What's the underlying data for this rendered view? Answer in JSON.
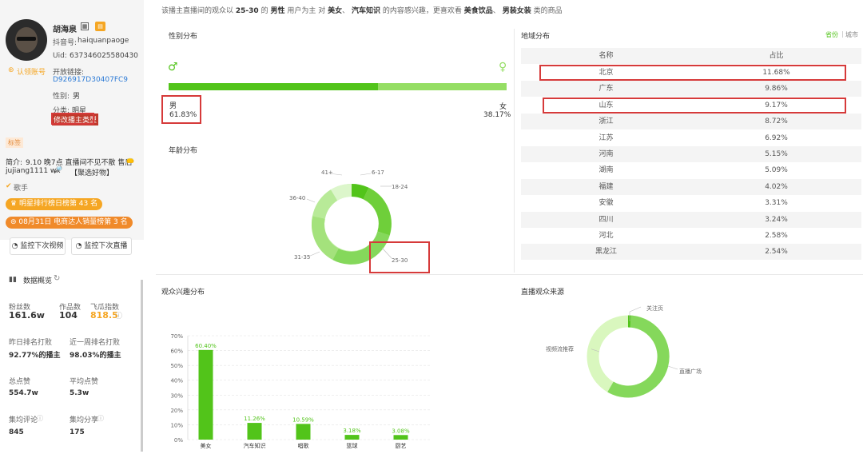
{
  "banner": {
    "p1": "该播主直播间的观众以",
    "age": "25-30",
    "p2": "的",
    "gender": "男性",
    "p3": "用户为主 对",
    "i1": "美女",
    "sep": "、",
    "i2": "汽车知识",
    "p4": "的内容感兴趣，更喜欢看",
    "g1": "美食饮品",
    "g2": "男装女装",
    "p5": "类的商品"
  },
  "profile": {
    "name": "胡海泉",
    "douyin_label": "抖音号:",
    "douyin_id": "haiquanpaoge",
    "uid_label": "Uid:",
    "uid": "637346025580430",
    "link_label": "开放链接:",
    "link": "D926917D30407FC9",
    "certify": "认领账号",
    "gender_label": "性别:",
    "gender": "男",
    "category_label": "分类:",
    "category": "明星",
    "edit_type": "修改播主类型",
    "tag": "标签",
    "intro_label": "简介:",
    "intro": "9.10 晚7点 直播间不见不散 售后",
    "intro2": "jujiang1111 wx",
    "intro3": "【聚选好物】",
    "role": "歌手",
    "rank1": "明星排行榜日榜第 43 名",
    "rank2": "08月31日 电商达人销量榜第 3 名",
    "monitor_video": "监控下次视频",
    "monitor_live": "监控下次直播"
  },
  "overview": {
    "title": "数据概览",
    "fans_label": "粉丝数",
    "fans": "161.6w",
    "works_label": "作品数",
    "works": "104",
    "index_label": "飞瓜指数",
    "index": "818.5",
    "yday_label": "昨日排名打败",
    "yday": "92.77%的播主",
    "week_label": "近一周排名打败",
    "week": "98.03%的播主",
    "likes_label": "总点赞",
    "likes": "554.7w",
    "avg_likes_label": "平均点赞",
    "avg_likes": "5.3w",
    "comments_label": "集均评论",
    "comments": "845",
    "shares_label": "集均分享",
    "shares": "175"
  },
  "gender": {
    "title": "性别分布",
    "male_label": "男",
    "male_pct": "61.83%",
    "female_label": "女",
    "female_pct": "38.17%",
    "male_share": 0.6183
  },
  "age": {
    "title": "年龄分布",
    "labels": [
      "6-17",
      "18-24",
      "25-30",
      "31-35",
      "36-40",
      "41+"
    ]
  },
  "region": {
    "title": "地域分布",
    "toggle_province": "省份",
    "toggle_sep": "|",
    "toggle_city": "城市",
    "col_name": "名称",
    "col_pct": "占比",
    "rows": [
      {
        "name": "北京",
        "pct": "11.68%"
      },
      {
        "name": "广东",
        "pct": "9.86%"
      },
      {
        "name": "山东",
        "pct": "9.17%"
      },
      {
        "name": "浙江",
        "pct": "8.72%"
      },
      {
        "name": "江苏",
        "pct": "6.92%"
      },
      {
        "name": "河南",
        "pct": "5.15%"
      },
      {
        "name": "湖南",
        "pct": "5.09%"
      },
      {
        "name": "福建",
        "pct": "4.02%"
      },
      {
        "name": "安徽",
        "pct": "3.31%"
      },
      {
        "name": "四川",
        "pct": "3.24%"
      },
      {
        "name": "河北",
        "pct": "2.58%"
      },
      {
        "name": "黑龙江",
        "pct": "2.54%"
      }
    ]
  },
  "interest": {
    "title": "观众兴趣分布"
  },
  "source": {
    "title": "直播观众来源",
    "labels": [
      "关注页",
      "直播广场",
      "视频流推荐"
    ]
  },
  "chart_data": {
    "type": "bar",
    "categories": [
      "美女",
      "汽车知识",
      "唱歌",
      "篮球",
      "厨艺"
    ],
    "values": [
      60.4,
      11.26,
      10.59,
      3.18,
      3.08
    ],
    "value_labels": [
      "60.40%",
      "11.26%",
      "10.59%",
      "3.18%",
      "3.08%"
    ],
    "yticks": [
      "70%",
      "60%",
      "50%",
      "40%",
      "30%",
      "20%",
      "10%",
      "0%"
    ],
    "ylim": [
      0,
      70
    ]
  },
  "colors": {
    "green": "#52c41a",
    "light_green": "#95de64",
    "pale_green": "#d9f7be",
    "orange": "#f5a623",
    "red": "#d63a3a"
  }
}
